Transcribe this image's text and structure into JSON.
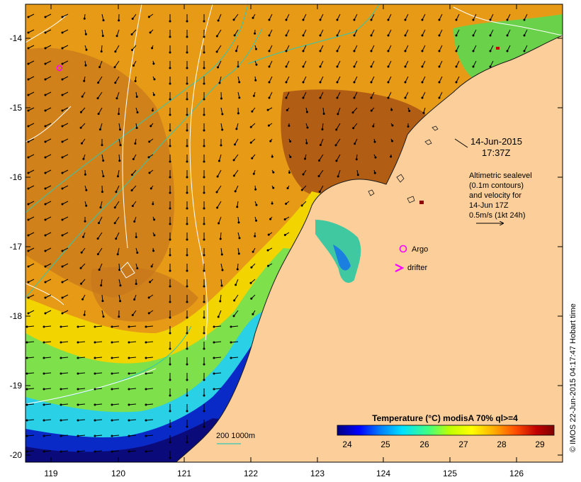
{
  "lon_ticks": [
    "119",
    "120",
    "121",
    "122",
    "123",
    "124",
    "125",
    "126"
  ],
  "lat_ticks": [
    "-14",
    "-15",
    "-16",
    "-17",
    "-18",
    "-19",
    "-20"
  ],
  "timestamp": {
    "date": "14-Jun-2015",
    "time": "17:37Z"
  },
  "legend_note": {
    "lines": [
      "Altimetric sealevel",
      "(0.1m contours)",
      "and velocity for",
      "14-Jun 17Z",
      "0.5m/s (1kt 24h)"
    ]
  },
  "markers": {
    "argo": "Argo",
    "drifter": "drifter"
  },
  "depth_label": "200  1000m",
  "colorbar": {
    "title": "Temperature (°C) modisA 70% ql>=4",
    "ticks": [
      "24",
      "25",
      "26",
      "27",
      "28",
      "29"
    ],
    "colors": [
      "#00007f",
      "#0000ff",
      "#0080ff",
      "#00e0ff",
      "#40ff80",
      "#c0ff00",
      "#ffff00",
      "#ffb000",
      "#ff5000",
      "#c00000",
      "#7f0000"
    ]
  },
  "credit": "© IMOS 22-Jun-2015 04:17:47 Hobart time",
  "colors": {
    "land": "#fccf9a",
    "contour": "#ffffff",
    "isobath": "#2ec8b4",
    "marker": "#ff00ff"
  }
}
